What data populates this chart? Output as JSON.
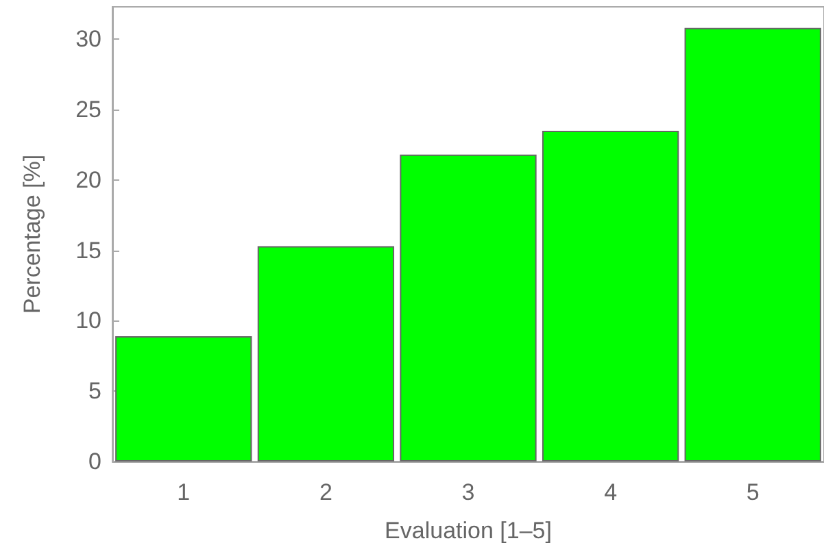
{
  "chart_data": {
    "type": "bar",
    "xlabel": "Evaluation [1–5]",
    "ylabel": "Percentage [%]",
    "categories": [
      "1",
      "2",
      "3",
      "4",
      "5"
    ],
    "values": [
      8.9,
      15.3,
      21.8,
      23.5,
      30.8
    ],
    "color": "#00ff00",
    "ylim": [
      0,
      32.3
    ],
    "yticks": [
      0,
      5,
      10,
      15,
      20,
      25,
      30
    ],
    "grid": false
  }
}
